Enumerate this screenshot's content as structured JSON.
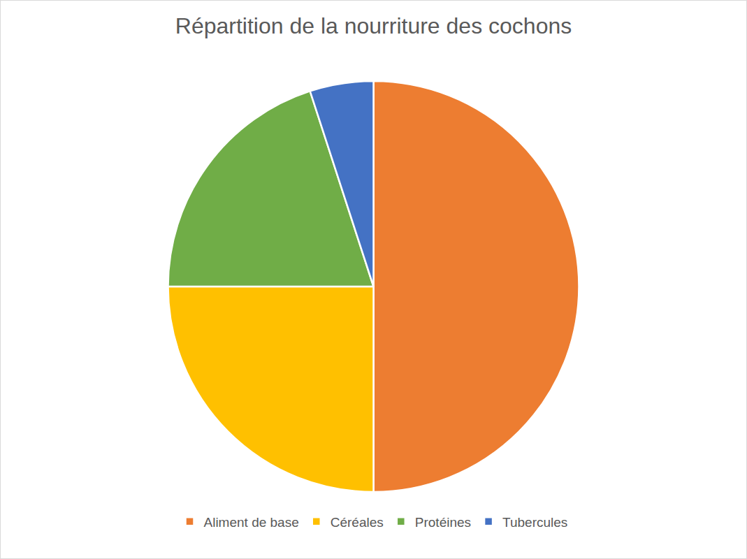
{
  "chart_data": {
    "type": "pie",
    "title": "Répartition de la nourriture des cochons",
    "categories": [
      "Aliment de base",
      "Céréales",
      "Protéines",
      "Tubercules"
    ],
    "values": [
      50,
      25,
      20,
      5
    ],
    "colors": [
      "#ed7d31",
      "#ffc000",
      "#70ad47",
      "#4472c4"
    ],
    "legend": "bottom"
  }
}
